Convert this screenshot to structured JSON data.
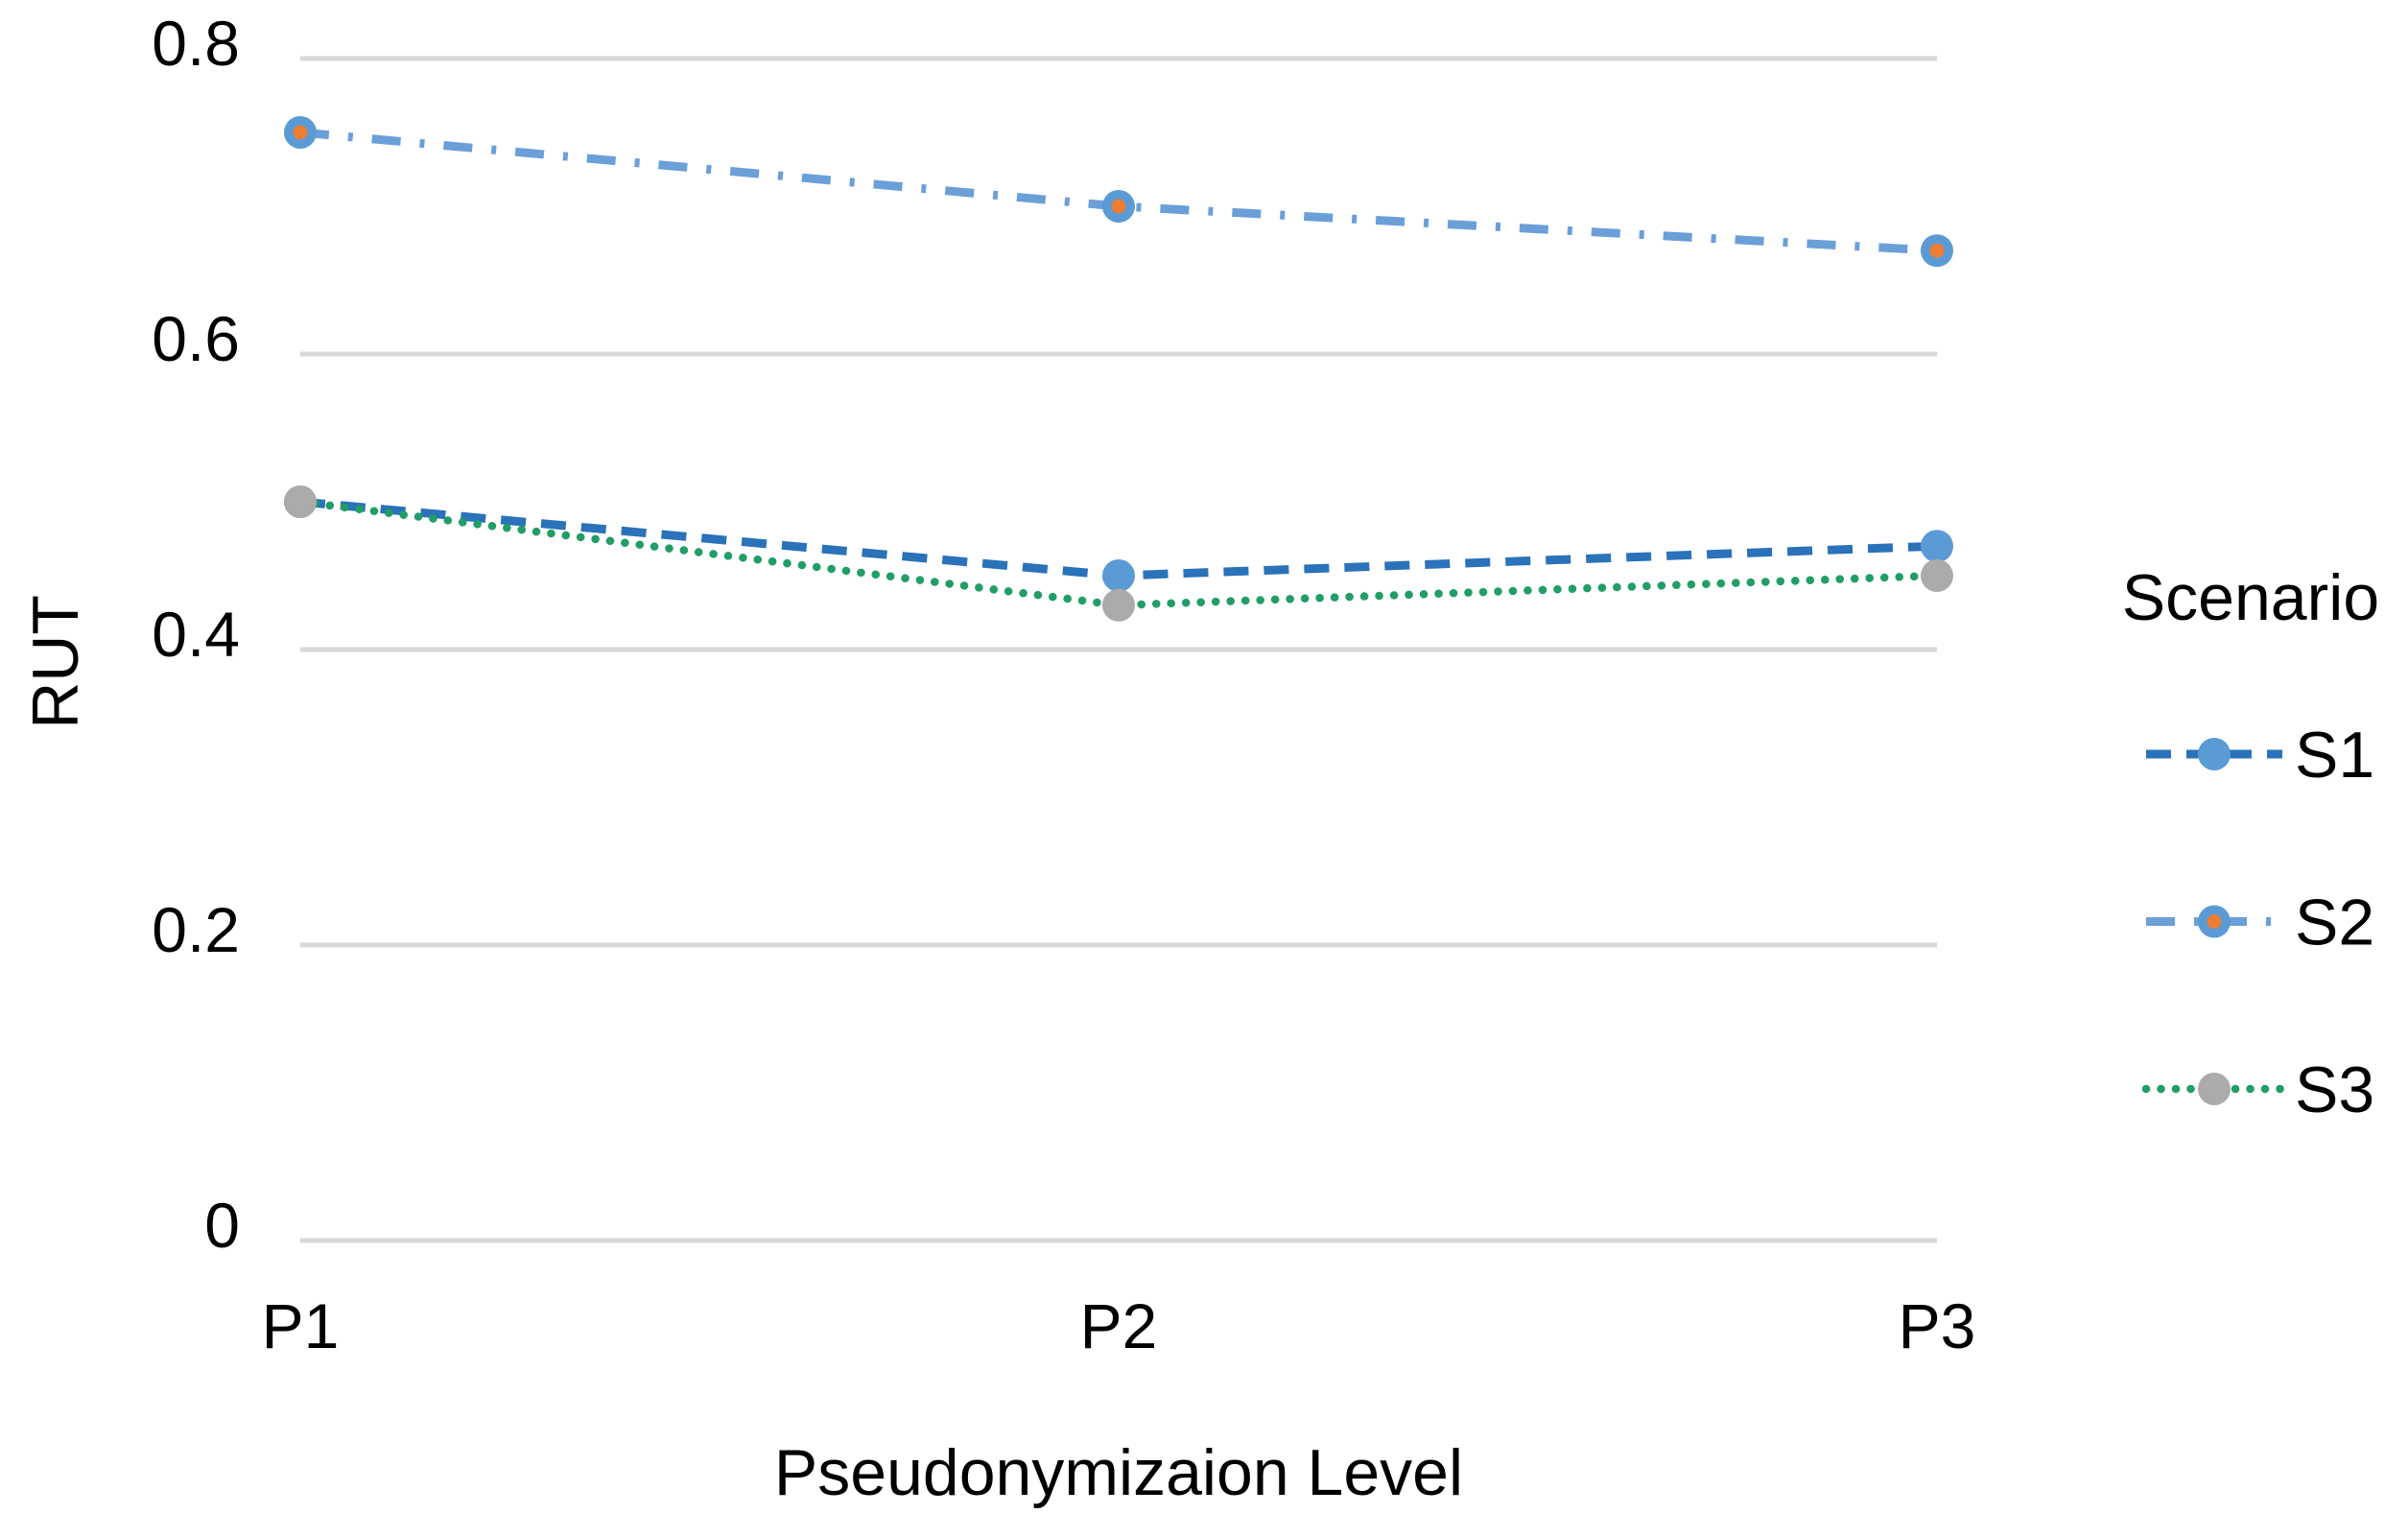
{
  "chart_data": {
    "type": "line",
    "title": "",
    "categories": [
      "P1",
      "P2",
      "P3"
    ],
    "series": [
      {
        "name": "S1",
        "values": [
          0.5,
          0.45,
          0.47
        ],
        "line_color": "#2A72B9",
        "line_style": "dashed",
        "marker_fill": "#5B9BD5"
      },
      {
        "name": "S2",
        "values": [
          0.75,
          0.7,
          0.67
        ],
        "line_color": "#6B9FD8",
        "line_style": "dash-dot",
        "marker_fill": "#5B9BD5",
        "marker_inner": "#EC7D33"
      },
      {
        "name": "S3",
        "values": [
          0.5,
          0.43,
          0.45
        ],
        "line_color": "#219E66",
        "line_style": "dotted",
        "marker_fill": "#ABABAB"
      }
    ],
    "xlabel": "Pseudonymizaion Level",
    "ylabel": "RUT",
    "ylim": [
      0,
      0.8
    ],
    "yticks": [
      0,
      0.2,
      0.4,
      0.6,
      0.8
    ],
    "ytick_labels": [
      "0",
      "0.2",
      "0.4",
      "0.6",
      "0.8"
    ],
    "xtick_labels": [
      "P1",
      "P2",
      "P3"
    ],
    "legend_title": "Scenario",
    "legend_labels": [
      "S1",
      "S2",
      "S3"
    ],
    "legend_position": "right",
    "grid": "horizontal-only",
    "grid_color": "#D8D8D8",
    "text_color": "#000000",
    "background_color": "#FFFFFF"
  }
}
